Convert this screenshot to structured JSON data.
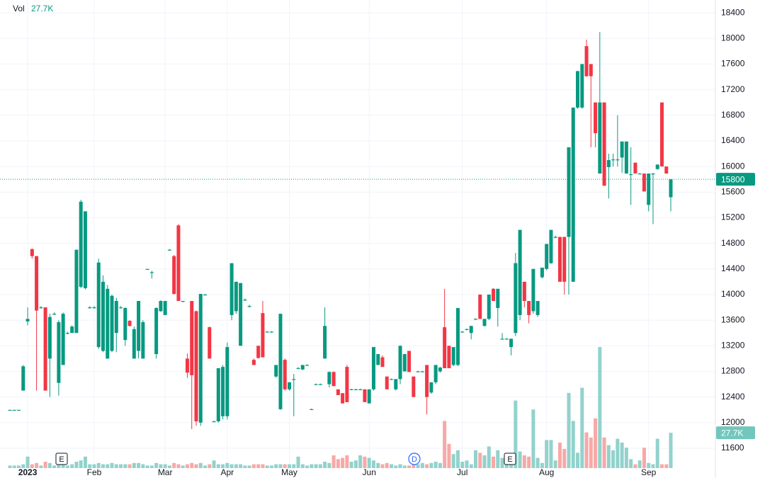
{
  "chart_data": {
    "type": "candlestick",
    "volume_title": "Vol",
    "volume_label": "27.7K",
    "last_price": 15800,
    "ylim": [
      11290,
      18600
    ],
    "yticks": [
      11600,
      12000,
      12400,
      12800,
      13200,
      13600,
      14000,
      14400,
      14800,
      15200,
      15600,
      16000,
      16400,
      16800,
      17200,
      17600,
      18000,
      18400
    ],
    "grid": true,
    "up_color": "#089981",
    "down_color": "#f23645",
    "up_volume_color": "#92d2cc",
    "down_volume_color": "#f7a9a7",
    "markers": [
      "E",
      "D",
      "E"
    ],
    "candles": [
      [
        12200,
        12200,
        12200,
        12200,
        2
      ],
      [
        12200,
        12200,
        12200,
        12200,
        2
      ],
      [
        12200,
        12200,
        12200,
        12200,
        2
      ],
      [
        12500,
        12900,
        12500,
        12880,
        3
      ],
      [
        13580,
        13800,
        13520,
        13620,
        9
      ],
      [
        14710,
        14720,
        14560,
        14600,
        3
      ],
      [
        14600,
        14600,
        12500,
        13750,
        4
      ],
      [
        13800,
        13820,
        13780,
        13800,
        2
      ],
      [
        13800,
        13800,
        12500,
        12500,
        5
      ],
      [
        13000,
        13700,
        12400,
        13650,
        4
      ],
      [
        13700,
        13720,
        13680,
        13700,
        2
      ],
      [
        12620,
        13600,
        12420,
        13570,
        4
      ],
      [
        12900,
        13720,
        12900,
        13700,
        3
      ],
      [
        13400,
        13420,
        13380,
        13400,
        2
      ],
      [
        13400,
        13520,
        13400,
        13500,
        3
      ],
      [
        13400,
        14700,
        13400,
        14700,
        5
      ],
      [
        14120,
        15480,
        14100,
        15450,
        6
      ],
      [
        14100,
        15300,
        14080,
        15300,
        9
      ],
      [
        13800,
        13820,
        13780,
        13800,
        3
      ],
      [
        13800,
        13820,
        13780,
        13800,
        3
      ],
      [
        13180,
        14560,
        13150,
        14500,
        4
      ],
      [
        13120,
        14300,
        13100,
        14200,
        3
      ],
      [
        13000,
        14150,
        13000,
        14090,
        3
      ],
      [
        13120,
        14000,
        13100,
        13980,
        4
      ],
      [
        13400,
        13950,
        13100,
        13900,
        3
      ],
      [
        13800,
        13820,
        13780,
        13800,
        3
      ],
      [
        13290,
        13800,
        13200,
        13790,
        3
      ],
      [
        13590,
        13600,
        13500,
        13510,
        3
      ],
      [
        13000,
        13500,
        13000,
        13460,
        4
      ],
      [
        13120,
        13900,
        13000,
        13900,
        4
      ],
      [
        13000,
        13600,
        13000,
        13570,
        3
      ],
      [
        14400,
        14400,
        14400,
        14400,
        2
      ],
      [
        14350,
        14370,
        14250,
        14350,
        2
      ],
      [
        13070,
        13800,
        13000,
        13790,
        4
      ],
      [
        13740,
        13910,
        13730,
        13900,
        3
      ],
      [
        13680,
        13900,
        13680,
        13900,
        3
      ],
      [
        14700,
        14710,
        14690,
        14700,
        2
      ],
      [
        14600,
        14620,
        14000,
        14010,
        4
      ],
      [
        15080,
        15100,
        13900,
        13900,
        3
      ],
      [
        13900,
        13900,
        13880,
        13900,
        2
      ],
      [
        13000,
        13080,
        12700,
        12780,
        3
      ],
      [
        13900,
        13900,
        11900,
        12740,
        4
      ],
      [
        13740,
        13750,
        11950,
        12020,
        3
      ],
      [
        12000,
        14010,
        11950,
        14010,
        4
      ],
      [
        14000,
        14010,
        13990,
        14000,
        2
      ],
      [
        13490,
        13500,
        13000,
        13000,
        3
      ],
      [
        12020,
        12030,
        12010,
        12020,
        6
      ],
      [
        12020,
        12850,
        12000,
        12850,
        3
      ],
      [
        12100,
        12900,
        12050,
        12870,
        3
      ],
      [
        12100,
        13250,
        12050,
        13180,
        4
      ],
      [
        13680,
        14490,
        13600,
        14490,
        3
      ],
      [
        13740,
        14200,
        13700,
        14200,
        3
      ],
      [
        13200,
        14180,
        13200,
        14180,
        3
      ],
      [
        13920,
        13940,
        13900,
        13920,
        2
      ],
      [
        13820,
        13840,
        13800,
        13820,
        2
      ],
      [
        12980,
        13000,
        12900,
        12900,
        3
      ],
      [
        13200,
        13200,
        13000,
        13010,
        3
      ],
      [
        13710,
        13900,
        13020,
        13020,
        3
      ],
      [
        13420,
        13430,
        13410,
        13420,
        2
      ],
      [
        13420,
        13430,
        13410,
        13420,
        2
      ],
      [
        12720,
        12900,
        12700,
        12900,
        3
      ],
      [
        12210,
        13700,
        12200,
        13700,
        3
      ],
      [
        12980,
        13000,
        12500,
        12520,
        3
      ],
      [
        12520,
        12630,
        12500,
        12630,
        3
      ],
      [
        12680,
        12760,
        12100,
        12680,
        3
      ],
      [
        12850,
        12870,
        12840,
        12850,
        9
      ],
      [
        12830,
        12900,
        12820,
        12900,
        3
      ],
      [
        12900,
        12910,
        12890,
        12900,
        2
      ],
      [
        12210,
        12220,
        12200,
        12210,
        3
      ],
      [
        12600,
        12610,
        12590,
        12600,
        3
      ],
      [
        12600,
        12610,
        12590,
        12600,
        3
      ],
      [
        13000,
        13800,
        13000,
        13510,
        5
      ],
      [
        12600,
        12800,
        12550,
        12790,
        4
      ],
      [
        12790,
        12800,
        12570,
        12570,
        10
      ],
      [
        12520,
        12520,
        12430,
        12430,
        7
      ],
      [
        12460,
        12460,
        12300,
        12300,
        8
      ],
      [
        12870,
        12900,
        12320,
        12320,
        10
      ],
      [
        12520,
        12530,
        12510,
        12520,
        5
      ],
      [
        12520,
        12530,
        12510,
        12520,
        6
      ],
      [
        12520,
        12530,
        12510,
        12520,
        10
      ],
      [
        12520,
        12520,
        12320,
        12320,
        9
      ],
      [
        12300,
        12520,
        12300,
        12520,
        8
      ],
      [
        12520,
        13180,
        12500,
        13180,
        6
      ],
      [
        12900,
        13070,
        12900,
        13070,
        4
      ],
      [
        13020,
        13050,
        12870,
        12870,
        3
      ],
      [
        12720,
        12720,
        12520,
        12520,
        4
      ],
      [
        12680,
        12690,
        12670,
        12680,
        3
      ],
      [
        12520,
        12680,
        12500,
        12680,
        2
      ],
      [
        12680,
        13200,
        12600,
        13200,
        3
      ],
      [
        12800,
        13070,
        12800,
        13070,
        2
      ],
      [
        13120,
        13120,
        12790,
        12790,
        2
      ],
      [
        12720,
        12720,
        12400,
        12400,
        3
      ],
      [
        12800,
        12810,
        12790,
        12800,
        3
      ],
      [
        12800,
        12810,
        12790,
        12800,
        4
      ],
      [
        12900,
        12900,
        12130,
        12400,
        3
      ],
      [
        12470,
        12630,
        12450,
        12630,
        4
      ],
      [
        12630,
        12900,
        12600,
        12900,
        5
      ],
      [
        12800,
        12870,
        12780,
        12860,
        4
      ],
      [
        13490,
        14090,
        12850,
        12850,
        37
      ],
      [
        13200,
        13200,
        12850,
        12850,
        19
      ],
      [
        12900,
        13180,
        12880,
        13180,
        11
      ],
      [
        12900,
        13790,
        12880,
        13790,
        14
      ],
      [
        13420,
        13430,
        13410,
        13420,
        5
      ],
      [
        13460,
        13470,
        13440,
        13460,
        6
      ],
      [
        13400,
        13510,
        13300,
        13510,
        3
      ],
      [
        13620,
        13630,
        13610,
        13620,
        14
      ],
      [
        14000,
        14000,
        13620,
        13620,
        12
      ],
      [
        13510,
        13620,
        13500,
        13620,
        10
      ],
      [
        13620,
        14000,
        13600,
        14000,
        17
      ],
      [
        14090,
        14100,
        13900,
        13900,
        9
      ],
      [
        13790,
        14090,
        13500,
        14090,
        14
      ],
      [
        13310,
        13400,
        13300,
        13310,
        8
      ],
      [
        13310,
        13320,
        13300,
        13310,
        9
      ],
      [
        13180,
        13310,
        13050,
        13310,
        10
      ],
      [
        13400,
        14650,
        13350,
        14490,
        53
      ],
      [
        13680,
        15010,
        13600,
        15010,
        13
      ],
      [
        14200,
        14200,
        13800,
        13900,
        10
      ],
      [
        13900,
        13900,
        13550,
        13680,
        9
      ],
      [
        13740,
        14400,
        13700,
        14400,
        46
      ],
      [
        13680,
        13900,
        13650,
        13900,
        8
      ],
      [
        14270,
        14420,
        14250,
        14420,
        4
      ],
      [
        14400,
        14790,
        14380,
        14790,
        22
      ],
      [
        14490,
        15010,
        14480,
        15010,
        22
      ],
      [
        14900,
        14920,
        14880,
        14900,
        6
      ],
      [
        14900,
        14900,
        14200,
        14200,
        20
      ],
      [
        14900,
        14900,
        14000,
        14200,
        15
      ],
      [
        14900,
        16300,
        14000,
        16300,
        59
      ],
      [
        14200,
        16920,
        14200,
        16920,
        37
      ],
      [
        16920,
        17490,
        16900,
        17490,
        12
      ],
      [
        16920,
        17600,
        16900,
        17600,
        63
      ],
      [
        17880,
        17980,
        17400,
        17410,
        28
      ],
      [
        17600,
        17600,
        16300,
        17410,
        24
      ],
      [
        17000,
        17000,
        16300,
        16520,
        39
      ],
      [
        15890,
        18100,
        15890,
        17000,
        95
      ],
      [
        17000,
        17000,
        15700,
        15700,
        24
      ],
      [
        15990,
        16200,
        15500,
        16100,
        18
      ],
      [
        16110,
        16200,
        16000,
        16110,
        14
      ],
      [
        16110,
        16800,
        16000,
        16110,
        23
      ],
      [
        16140,
        16390,
        15900,
        16390,
        20
      ],
      [
        15890,
        16390,
        15890,
        16390,
        16
      ],
      [
        15880,
        16300,
        15400,
        15880,
        7
      ],
      [
        16060,
        16060,
        15890,
        15890,
        3
      ],
      [
        15890,
        15900,
        15880,
        15890,
        6
      ],
      [
        15890,
        15890,
        15610,
        15610,
        16
      ],
      [
        15400,
        15890,
        15300,
        15890,
        4
      ],
      [
        15890,
        15900,
        15100,
        15890,
        3
      ],
      [
        15960,
        16030,
        15950,
        16030,
        23
      ],
      [
        17000,
        17000,
        16000,
        16000,
        3
      ],
      [
        16000,
        16000,
        15890,
        15890,
        3
      ],
      [
        15520,
        15800,
        15300,
        15800,
        27.7
      ]
    ],
    "categories": [
      null,
      null,
      null,
      null,
      "2023",
      null,
      null,
      null,
      null,
      null,
      null,
      null,
      null,
      null,
      null,
      null,
      null,
      null,
      null,
      "Feb",
      null,
      null,
      null,
      null,
      null,
      null,
      null,
      null,
      null,
      null,
      null,
      null,
      null,
      null,
      null,
      "Mar",
      null,
      null,
      null,
      null,
      null,
      null,
      null,
      null,
      null,
      null,
      null,
      null,
      null,
      "Apr",
      null,
      null,
      null,
      null,
      null,
      null,
      null,
      null,
      null,
      null,
      null,
      null,
      null,
      "May",
      null,
      null,
      null,
      null,
      null,
      null,
      null,
      null,
      null,
      null,
      null,
      null,
      null,
      null,
      null,
      null,
      null,
      "Jun",
      null,
      null,
      null,
      null,
      null,
      null,
      null,
      null,
      null,
      null,
      null,
      null,
      null,
      null,
      null,
      null,
      null,
      null,
      null,
      null,
      "Jul",
      null,
      null,
      null,
      null,
      null,
      null,
      null,
      null,
      null,
      null,
      null,
      null,
      null,
      null,
      null,
      null,
      null,
      null,
      "Aug",
      null,
      null,
      null,
      null,
      null,
      null,
      null,
      null,
      null,
      null,
      null,
      null,
      null,
      null,
      null,
      null,
      null,
      null,
      null,
      null,
      null,
      null,
      "Sep",
      null,
      null,
      null,
      null,
      null,
      null
    ]
  }
}
